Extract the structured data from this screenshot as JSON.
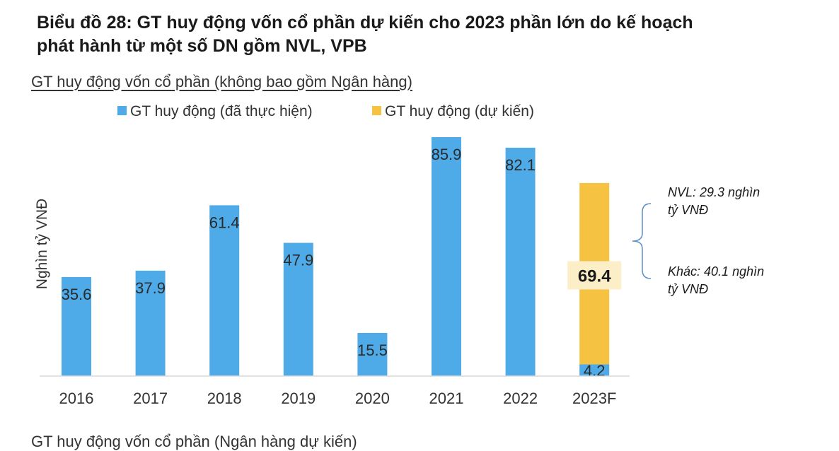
{
  "page": {
    "title_line1": "Biểu đồ 28: GT huy động vốn cổ phần dự kiến cho 2023 phần lớn do kế hoạch",
    "title_line2": "phát hành từ một số DN gồm NVL, VPB",
    "bottom_partial": "GT huy động vốn cổ phần (Ngân hàng dự kiến)"
  },
  "chart_data": {
    "type": "bar",
    "title": "GT huy động vốn cổ phần (không bao gồm Ngân hàng)",
    "xlabel": "",
    "ylabel": "Nghìn tỷ VNĐ",
    "categories": [
      "2016",
      "2017",
      "2018",
      "2019",
      "2020",
      "2021",
      "2022",
      "2023F"
    ],
    "series": [
      {
        "name": "GT huy động (đã thực hiện)",
        "color": "#4FAAE8",
        "values": [
          35.6,
          37.9,
          61.4,
          47.9,
          15.5,
          85.9,
          82.1,
          4.2
        ]
      },
      {
        "name": "GT huy động (dự kiến)",
        "color": "#F5C242",
        "values": [
          0,
          0,
          0,
          0,
          0,
          0,
          0,
          65.2
        ]
      }
    ],
    "stacked": true,
    "data_labels": [
      "35.6",
      "37.9",
      "61.4",
      "47.9",
      "15.5",
      "85.9",
      "82.1",
      "4.2"
    ],
    "total_label": "69.4",
    "total_value": 69.4,
    "ylim": [
      0,
      88
    ],
    "grid": false,
    "legend_position": "top",
    "annotations": [
      {
        "line1": "NVL: 29.3 nghìn",
        "line2": "tỷ VNĐ"
      },
      {
        "line1": "Khác: 40.1 nghìn",
        "line2": "tỷ VNĐ"
      }
    ]
  }
}
